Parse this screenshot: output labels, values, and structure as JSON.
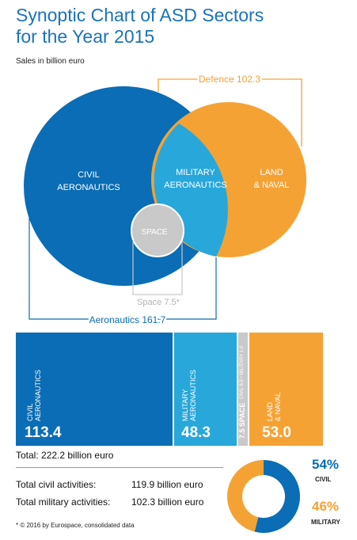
{
  "title": "Synoptic Chart of ASD Sectors for the Year 2015",
  "subtitle": "Sales in billion euro",
  "colors": {
    "civil": "#0a6db5",
    "military": "#28a7db",
    "land": "#f5a234",
    "space": "#c9c9c9",
    "title": "#1a73b8"
  },
  "chart_data": [
    {
      "type": "venn",
      "sets": [
        {
          "name": "CIVIL AERONAUTICS"
        },
        {
          "name": "MILITARY AERONAUTICS"
        },
        {
          "name": "LAND & NAVAL"
        },
        {
          "name": "SPACE"
        }
      ],
      "callouts": [
        {
          "label": "Defence",
          "value": 102.3,
          "text": "Defence 102.3"
        },
        {
          "label": "Space",
          "value": 7.5,
          "text": "Space 7.5*"
        },
        {
          "label": "Aeronautics",
          "value": 161.7,
          "text": "Aeronautics 161.7"
        }
      ]
    },
    {
      "type": "bar",
      "categories": [
        "CIVIL AERONAUTICS",
        "MILITARY AERONAUTICS",
        "SPACE",
        "LAND & NAVAL"
      ],
      "values": [
        113.4,
        48.3,
        7.5,
        53.0
      ],
      "value_labels": [
        "113.4",
        "48.3",
        "7.5",
        "53.0"
      ],
      "space_note": "CIVIL 6.5 • MILITARY 1.0"
    },
    {
      "type": "pie",
      "style": "donut",
      "slices": [
        {
          "name": "CIVIL",
          "value": 54,
          "label": "54%"
        },
        {
          "name": "MILITARY",
          "value": 46,
          "label": "46%"
        }
      ]
    }
  ],
  "total": "Total: 222.2 billion euro",
  "civil_row": {
    "label": "Total civil activities:",
    "value": "119.9 billion euro"
  },
  "military_row": {
    "label": "Total military activities:",
    "value": "102.3 billion euro"
  },
  "footnote": "* © 2016 by Eurospace, consolidated data"
}
